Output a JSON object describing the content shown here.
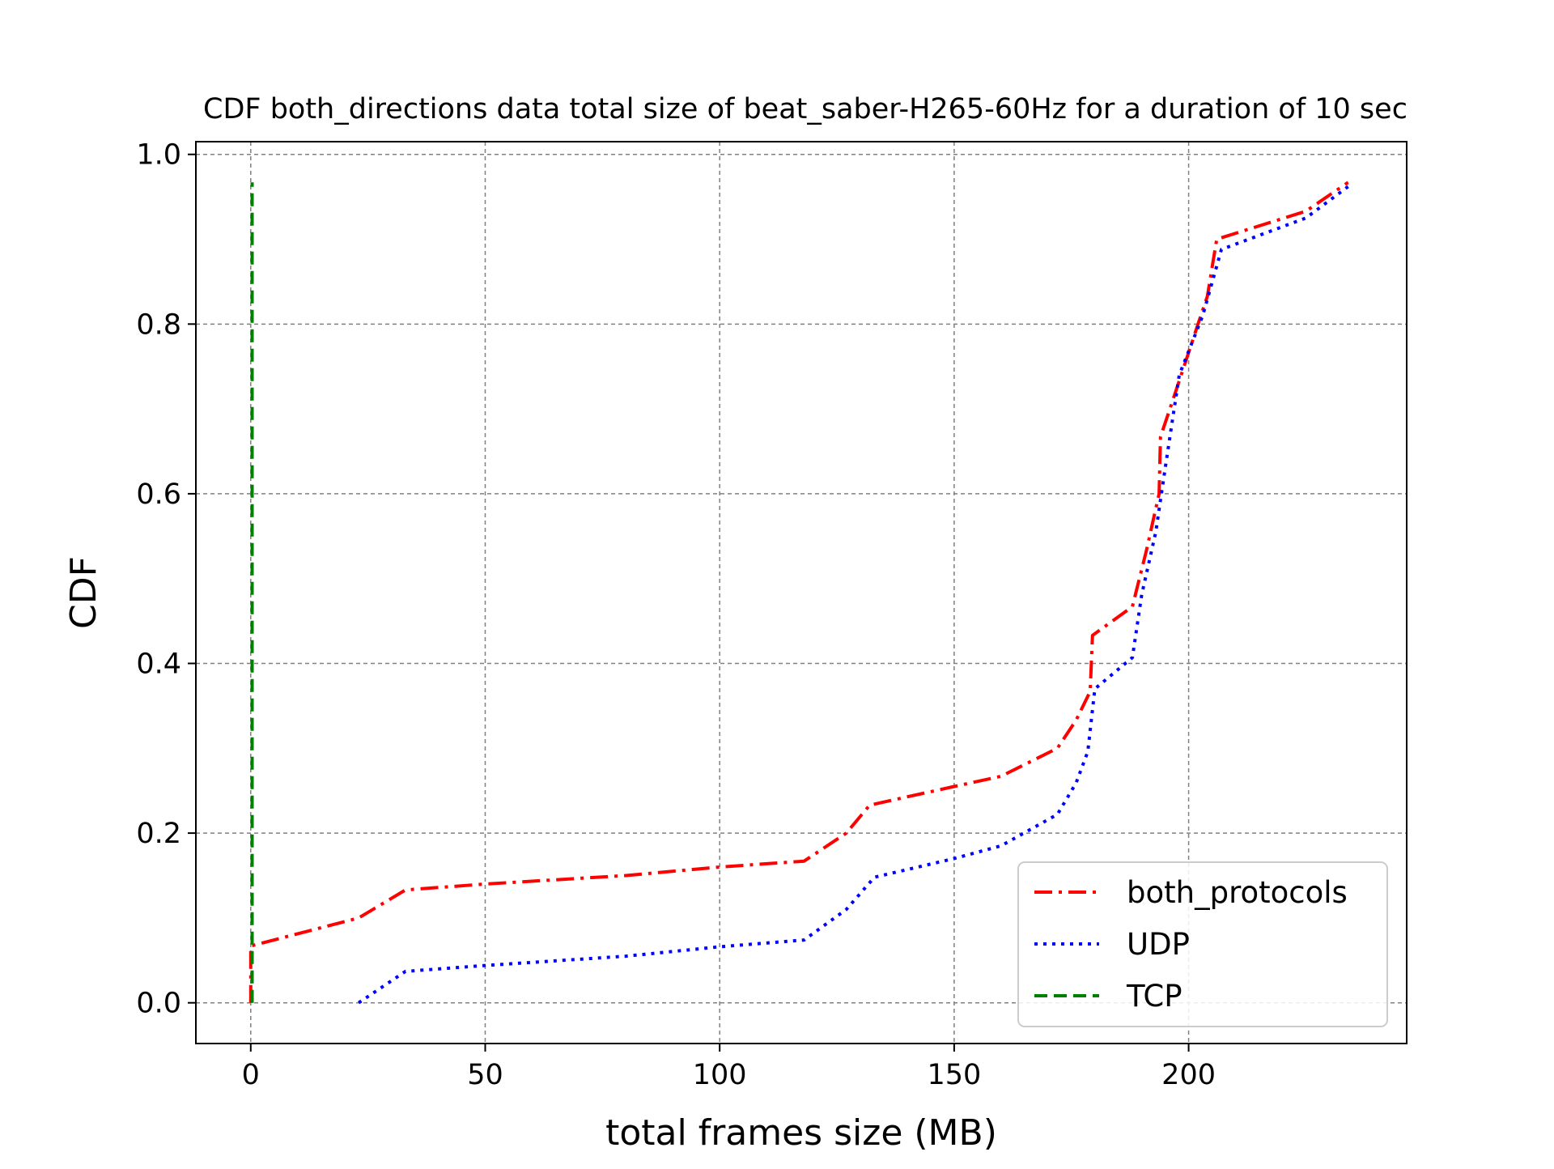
{
  "chart_data": {
    "type": "line",
    "title": "CDF both_directions data total size of beat_saber-H265-60Hz for a duration of 10 sec",
    "xlabel": "total frames size (MB)",
    "ylabel": "CDF",
    "xlim": [
      -11.7,
      246.5
    ],
    "ylim": [
      -0.048,
      1.015
    ],
    "xticks": [
      0,
      50,
      100,
      150,
      200
    ],
    "xtick_labels": [
      "0",
      "50",
      "100",
      "150",
      "200"
    ],
    "yticks": [
      0.0,
      0.2,
      0.4,
      0.6,
      0.8,
      1.0
    ],
    "ytick_labels": [
      "0.0",
      "0.2",
      "0.4",
      "0.6",
      "0.8",
      "1.0"
    ],
    "grid": true,
    "legend_position": "lower right",
    "series": [
      {
        "name": "both_protocols",
        "color": "#ff0000",
        "style": "dashdot",
        "x": [
          0,
          0,
          0,
          23,
          33,
          50,
          80,
          100,
          118,
          127,
          132,
          150,
          160,
          172,
          176,
          179,
          179.5,
          188,
          191,
          193.7,
          194,
          196,
          198,
          202,
          204,
          205,
          206,
          225,
          234
        ],
        "y": [
          0,
          0.04,
          0.067,
          0.1,
          0.133,
          0.14,
          0.15,
          0.16,
          0.167,
          0.2,
          0.233,
          0.255,
          0.267,
          0.3,
          0.333,
          0.367,
          0.433,
          0.467,
          0.533,
          0.6,
          0.667,
          0.7,
          0.733,
          0.8,
          0.833,
          0.867,
          0.9,
          0.933,
          0.967
        ]
      },
      {
        "name": "UDP",
        "color": "#0000ff",
        "style": "dotted",
        "x": [
          23,
          33,
          50,
          80,
          100,
          118,
          127,
          133,
          150,
          160,
          172,
          176,
          178.5,
          180,
          188,
          190,
          193,
          195,
          198,
          203,
          207,
          225,
          234
        ],
        "y": [
          0,
          0.037,
          0.044,
          0.055,
          0.066,
          0.074,
          0.11,
          0.148,
          0.17,
          0.185,
          0.222,
          0.259,
          0.296,
          0.37,
          0.407,
          0.481,
          0.555,
          0.63,
          0.74,
          0.81,
          0.888,
          0.925,
          0.962
        ]
      },
      {
        "name": "TCP",
        "color": "#008000",
        "style": "dashed",
        "x": [
          0.3,
          0.3
        ],
        "y": [
          0,
          0.967
        ]
      }
    ]
  }
}
